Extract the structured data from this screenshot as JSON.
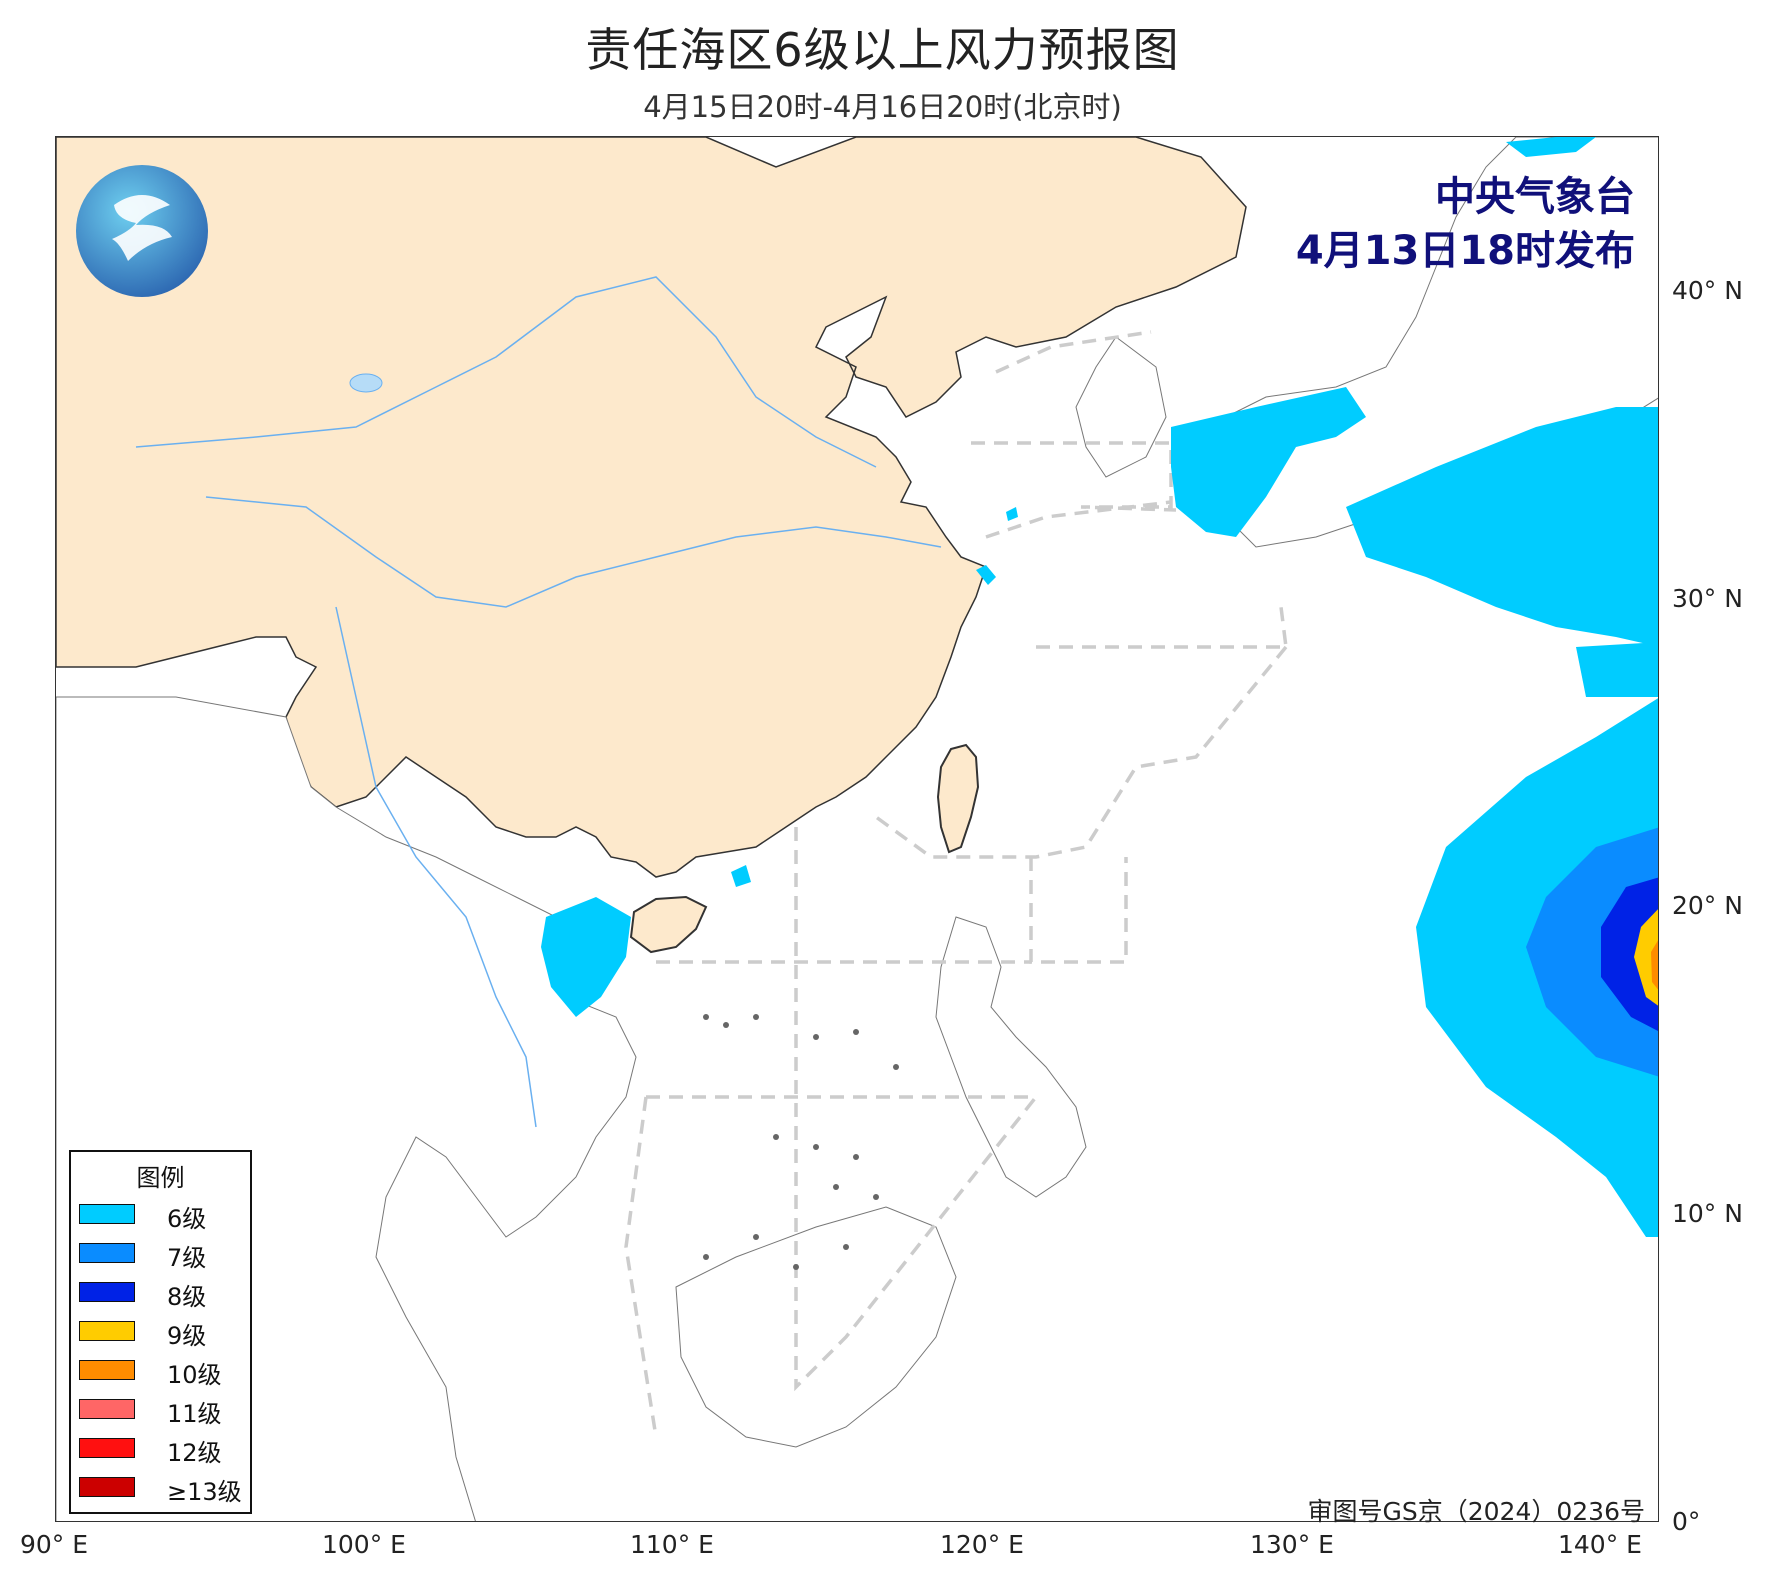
{
  "header": {
    "title": "责任海区6级以上风力预报图",
    "subtitle": "4月15日20时-4月16日20时(北京时)"
  },
  "publisher": {
    "line1": "中央气象台",
    "line2": "4月13日18时发布"
  },
  "approval": "审图号GS京（2024）0236号",
  "axes": {
    "x_ticks": [
      "90° E",
      "100° E",
      "110° E",
      "120° E",
      "130° E",
      "140° E"
    ],
    "y_ticks": [
      "40° N",
      "30° N",
      "20° N",
      "10° N",
      "0°"
    ]
  },
  "legend": {
    "title": "图例",
    "items": [
      {
        "label": "6级",
        "color": "#00ccff"
      },
      {
        "label": "7级",
        "color": "#0a8cff"
      },
      {
        "label": "8级",
        "color": "#0022e6"
      },
      {
        "label": "9级",
        "color": "#ffcc00"
      },
      {
        "label": "10级",
        "color": "#ff8c00"
      },
      {
        "label": "11级",
        "color": "#ff6666"
      },
      {
        "label": "12级",
        "color": "#ff1010"
      },
      {
        "label": "≥13级",
        "color": "#cc0000"
      }
    ]
  },
  "colors": {
    "land_china": "#fde9cc",
    "border": "#333333",
    "river": "#6ab0f0",
    "sea_zone_line": "#cccccc"
  },
  "logo": "cma-logo"
}
